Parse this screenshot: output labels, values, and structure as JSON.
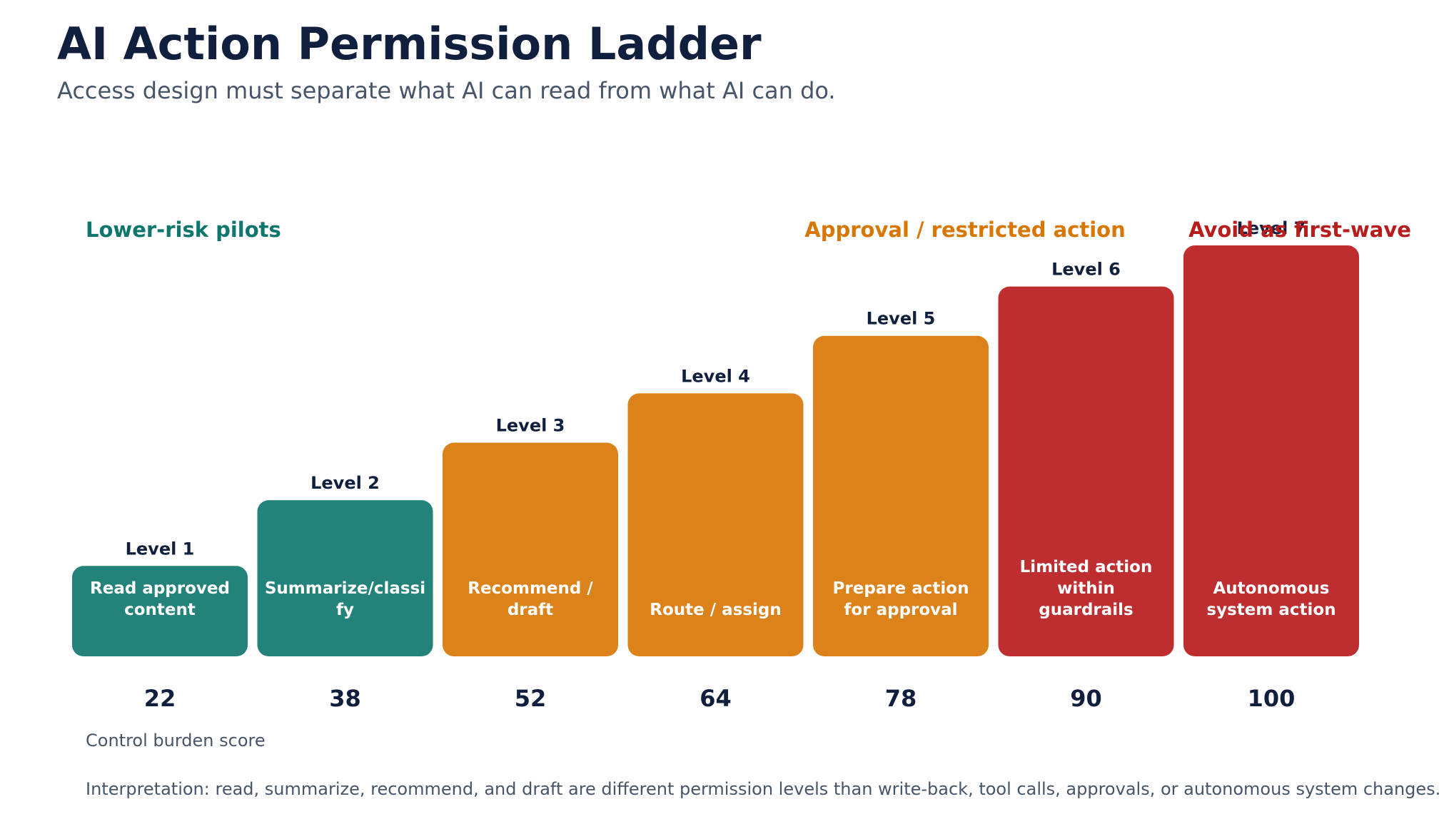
{
  "header": {
    "title": "AI Action Permission Ladder",
    "subtitle": "Access design must separate what AI can read from what AI can do."
  },
  "chart_data": {
    "type": "bar",
    "categories": [
      "Level 1",
      "Level 2",
      "Level 3",
      "Level 4",
      "Level 5",
      "Level 6",
      "Level 7"
    ],
    "descriptions": [
      "Read approved content",
      "Summarize/classify",
      "Recommend / draft",
      "Route / assign",
      "Prepare action for approval",
      "Limited action within guardrails",
      "Autonomous system action"
    ],
    "values": [
      22,
      38,
      52,
      64,
      78,
      90,
      100
    ],
    "value_labels": [
      "22",
      "38",
      "52",
      "64",
      "78",
      "90",
      "100"
    ],
    "groups": [
      0,
      0,
      1,
      1,
      1,
      2,
      2
    ],
    "group_labels": [
      "Lower-risk pilots",
      "Approval / restricted action",
      "Avoid as first-wave"
    ],
    "colors": {
      "group_fill": [
        "#23827a",
        "#db821b",
        "#be2d2f"
      ],
      "group_text": [
        "#0f766e",
        "#d97706",
        "#b91c1c"
      ],
      "level_label": "#0f1f3d",
      "bar_text": "#ffffff"
    },
    "xlabel": "Control burden score",
    "annotation": "Interpretation: read, summarize, recommend, and draft are different permission levels than write-back, tool calls, approvals, or autonomous system changes."
  }
}
